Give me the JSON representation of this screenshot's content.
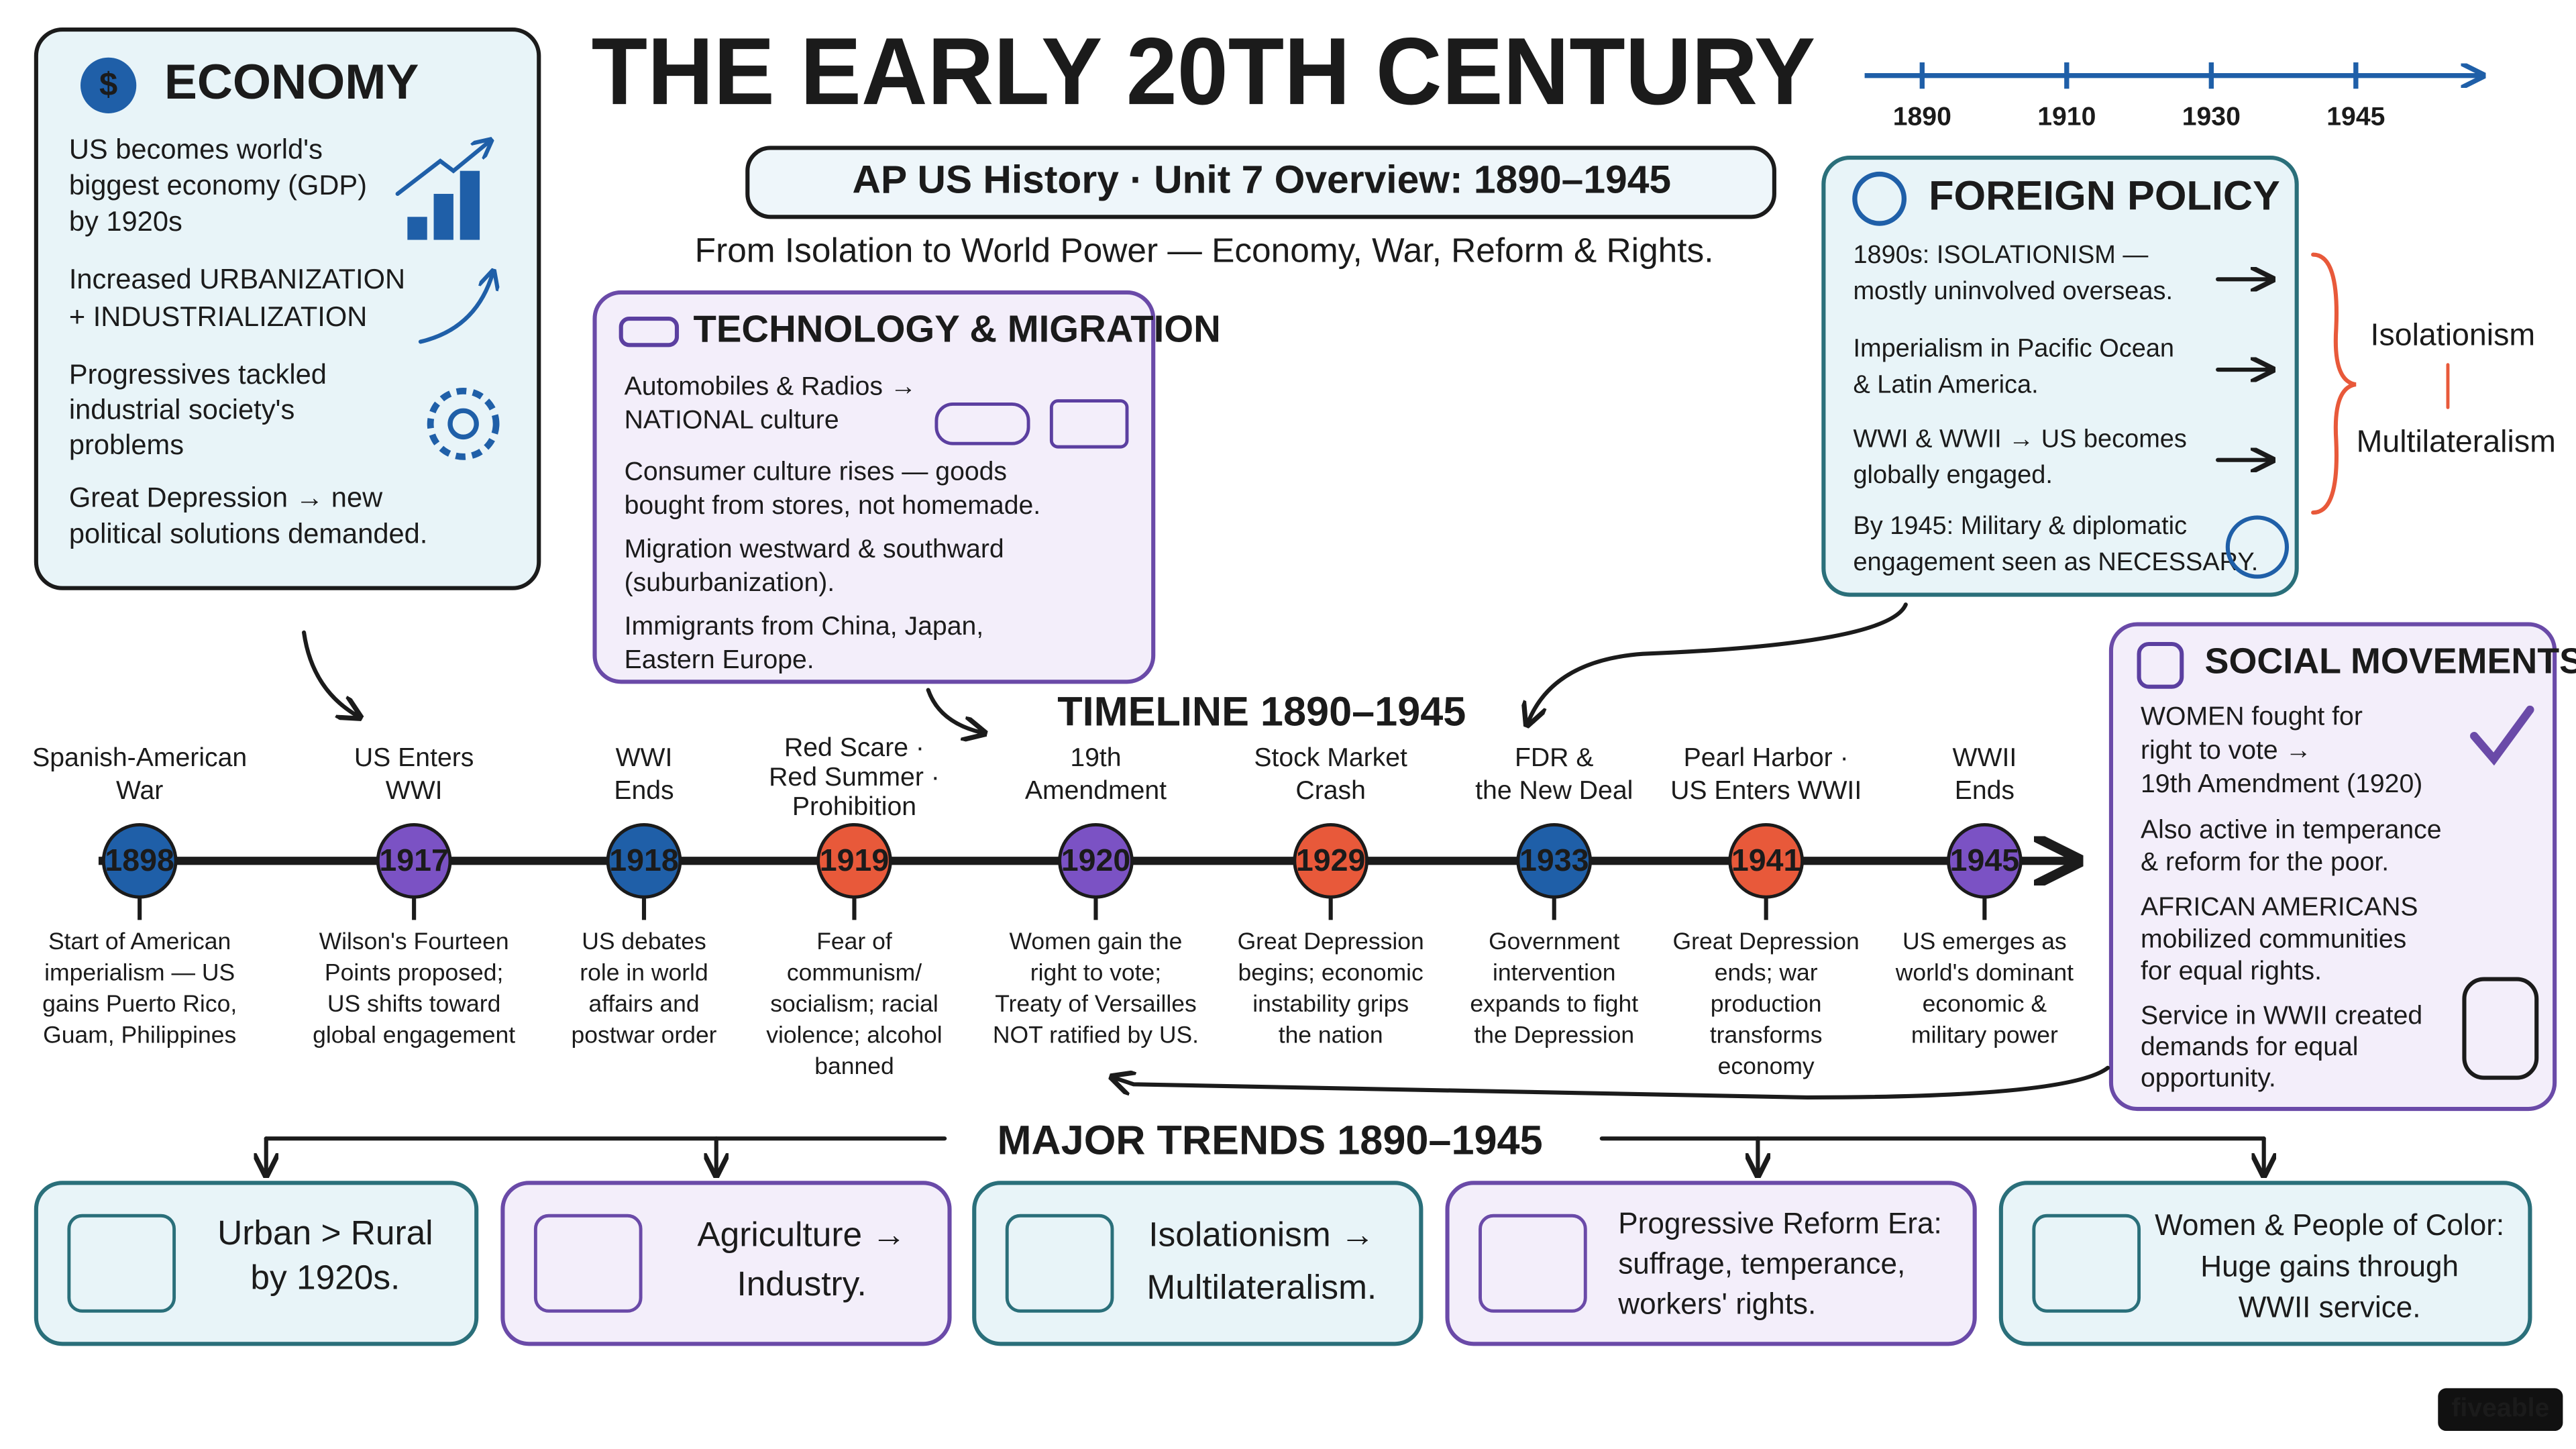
{
  "header": {
    "title": "THE EARLY 20TH CENTURY",
    "subtitle": "AP US History · Unit 7 Overview: 1890–1945",
    "tagline": "From Isolation to World Power — Economy, War, Reform & Rights."
  },
  "top_timeline": [
    "1890",
    "1910",
    "1930",
    "1945"
  ],
  "economy": {
    "title": "ECONOMY",
    "items": [
      [
        "US becomes world's",
        "biggest economy (GDP)",
        "by 1920s"
      ],
      [
        "Increased URBANIZATION",
        "+ INDUSTRIALIZATION"
      ],
      [
        "Progressives tackled",
        "industrial society's",
        "problems"
      ],
      [
        "Great Depression → new",
        "political solutions demanded."
      ]
    ]
  },
  "technology": {
    "title": "TECHNOLOGY & MIGRATION",
    "items": [
      [
        "Automobiles & Radios →",
        "NATIONAL culture"
      ],
      [
        "Consumer culture rises — goods",
        "bought from stores, not homemade."
      ],
      [
        "Migration westward & southward",
        "(suburbanization)."
      ],
      [
        "Immigrants from China, Japan,",
        "Eastern Europe."
      ]
    ]
  },
  "foreign_policy": {
    "title": "FOREIGN POLICY",
    "items": [
      [
        "1890s: ISOLATIONISM —",
        "mostly uninvolved overseas."
      ],
      [
        "Imperialism in Pacific Ocean",
        "& Latin America."
      ],
      [
        "WWI & WWII → US becomes",
        "globally engaged."
      ],
      [
        "By 1945: Military & diplomatic",
        "engagement seen as NECESSARY."
      ]
    ],
    "shift": [
      "Isolationism",
      "Multilateralism"
    ]
  },
  "social_movements": {
    "title": "SOCIAL MOVEMENTS",
    "items": [
      [
        "WOMEN fought for",
        "right to vote →",
        "19th Amendment (1920)"
      ],
      [
        "Also active in temperance",
        "& reform for the poor."
      ],
      [
        "AFRICAN AMERICANS",
        "mobilized communities",
        "for equal rights."
      ],
      [
        "Service in WWII created",
        "demands for equal",
        "opportunity."
      ]
    ]
  },
  "timeline": {
    "title": "TIMELINE 1890–1945",
    "events": [
      {
        "label": [
          "Spanish-American",
          "War"
        ],
        "year": "1898",
        "color": "#1f5fa8",
        "description": [
          "Start of American",
          "imperialism — US",
          "gains Puerto Rico,",
          "Guam, Philippines"
        ]
      },
      {
        "label": [
          "US Enters",
          "WWI"
        ],
        "year": "1917",
        "color": "#7b52c4",
        "description": [
          "Wilson's Fourteen",
          "Points proposed;",
          "US shifts toward",
          "global engagement"
        ]
      },
      {
        "label": [
          "WWI",
          "Ends"
        ],
        "year": "1918",
        "color": "#1f5fa8",
        "description": [
          "US debates",
          "role in world",
          "affairs and",
          "postwar order"
        ]
      },
      {
        "label": [
          "Red Scare ·",
          "Red Summer ·",
          "Prohibition"
        ],
        "year": "1919",
        "color": "#e8593a",
        "description": [
          "Fear of",
          "communism/",
          "socialism; racial",
          "violence; alcohol",
          "banned"
        ]
      },
      {
        "label": [
          "19th",
          "Amendment"
        ],
        "year": "1920",
        "color": "#7b52c4",
        "description": [
          "Women gain the",
          "right to vote;",
          "Treaty of Versailles",
          "NOT ratified by US."
        ]
      },
      {
        "label": [
          "Stock Market",
          "Crash"
        ],
        "year": "1929",
        "color": "#e8593a",
        "description": [
          "Great Depression",
          "begins; economic",
          "instability grips",
          "the nation"
        ]
      },
      {
        "label": [
          "FDR &",
          "the New Deal"
        ],
        "year": "1933",
        "color": "#1f5fa8",
        "description": [
          "Government",
          "intervention",
          "expands to fight",
          "the Depression"
        ]
      },
      {
        "label": [
          "Pearl Harbor ·",
          "US Enters WWII"
        ],
        "year": "1941",
        "color": "#e8593a",
        "description": [
          "Great Depression",
          "ends; war",
          "production",
          "transforms",
          "economy"
        ]
      },
      {
        "label": [
          "WWII",
          "Ends"
        ],
        "year": "1945",
        "color": "#7b52c4",
        "description": [
          "US emerges as",
          "world's dominant",
          "economic &",
          "military power"
        ]
      }
    ]
  },
  "trends": {
    "title": "MAJOR TRENDS 1890–1945",
    "items": [
      [
        "Urban > Rural",
        "by 1920s."
      ],
      [
        "Agriculture →",
        "Industry."
      ],
      [
        "Isolationism →",
        "Multilateralism."
      ],
      [
        "Progressive Reform Era:",
        "suffrage, temperance,",
        "workers' rights."
      ],
      [
        "Women & People of Color:",
        "Huge gains through",
        "WWII service."
      ]
    ]
  },
  "footer": {
    "brand": "fiveable"
  }
}
